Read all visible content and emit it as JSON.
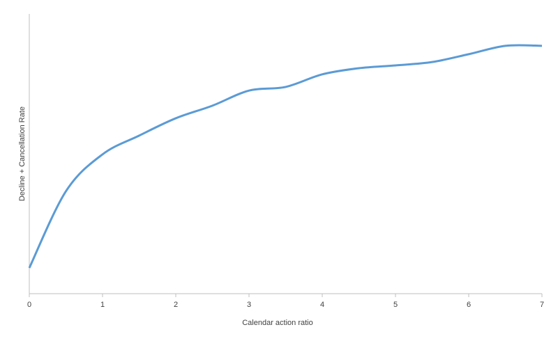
{
  "chart_data": {
    "type": "line",
    "x_label": "Calendar action ratio",
    "y_label": "Decline + Cancellation Rate",
    "x": [
      0,
      0.5,
      1,
      1.5,
      2,
      2.5,
      3,
      3.5,
      4,
      4.5,
      5,
      5.5,
      6,
      6.5,
      7
    ],
    "series": [
      {
        "color": "#5b9bd5",
        "values": [
          9.2,
          36.6,
          49.8,
          56.5,
          62.7,
          67.2,
          72.6,
          73.9,
          78.4,
          80.6,
          81.6,
          82.8,
          85.6,
          88.6,
          88.6
        ]
      }
    ],
    "xlim": [
      0,
      7
    ],
    "xticks": [
      0,
      1,
      2,
      3,
      4,
      5,
      6,
      7
    ],
    "ylim": [
      0,
      100
    ]
  }
}
